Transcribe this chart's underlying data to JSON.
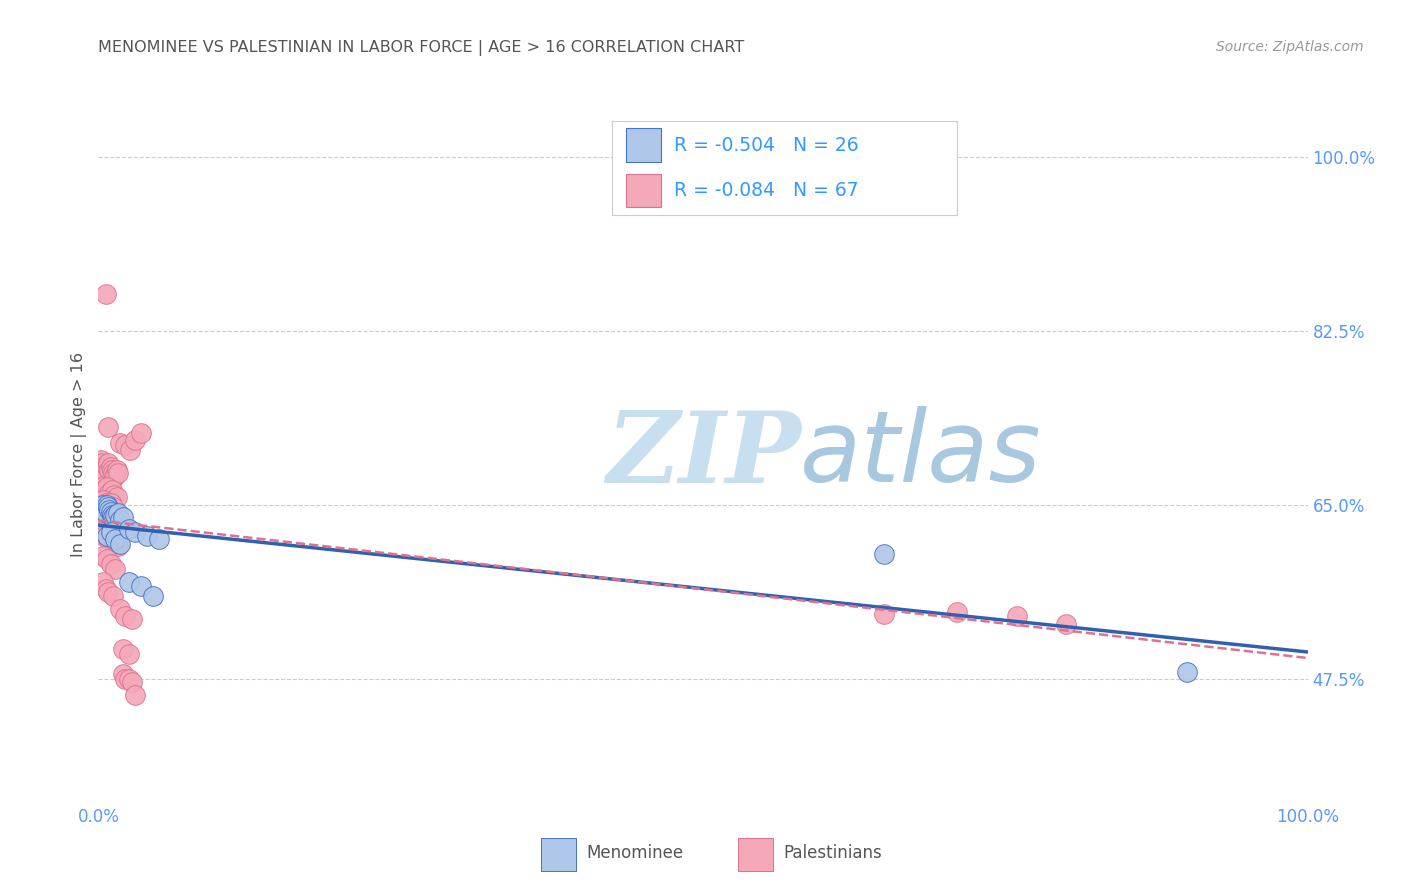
{
  "title": "MENOMINEE VS PALESTINIAN IN LABOR FORCE | AGE > 16 CORRELATION CHART",
  "source": "Source: ZipAtlas.com",
  "ylabel": "In Labor Force | Age > 16",
  "watermark_zip": "ZIP",
  "watermark_atlas": "atlas",
  "xlim": [
    0.0,
    1.0
  ],
  "ylim": [
    0.35,
    1.05
  ],
  "xtick_positions": [
    0.0,
    0.25,
    0.5,
    0.75,
    1.0
  ],
  "xtick_labels": [
    "0.0%",
    "",
    "",
    "",
    "100.0%"
  ],
  "ytick_positions": [
    0.475,
    0.65,
    0.825,
    1.0
  ],
  "ytick_labels": [
    "47.5%",
    "65.0%",
    "82.5%",
    "100.0%"
  ],
  "menominee_fill": "#aec6e8",
  "menominee_edge": "#4472c4",
  "palestinians_fill": "#f4a8b8",
  "palestinians_edge": "#e07090",
  "menominee_line_color": "#3060b0",
  "palestinians_line_color": "#e07090",
  "background_color": "#ffffff",
  "grid_color": "#cccccc",
  "title_color": "#555555",
  "source_color": "#999999",
  "axis_tick_color": "#5599ff",
  "ylabel_color": "#555555",
  "watermark_zip_color": "#c8dff0",
  "watermark_atlas_color": "#a8c8e0",
  "legend_text_color": "#3399ff",
  "legend_border_color": "#cccccc",
  "bottom_legend_color": "#555555",
  "menominee_x": [
    0.003,
    0.004,
    0.005,
    0.006,
    0.007,
    0.008,
    0.009,
    0.01,
    0.011,
    0.012,
    0.013,
    0.014,
    0.016,
    0.018,
    0.02,
    0.007,
    0.01,
    0.014,
    0.018,
    0.025,
    0.03,
    0.04,
    0.05,
    0.025,
    0.035,
    0.045,
    0.65,
    0.9
  ],
  "menominee_y": [
    0.648,
    0.65,
    0.645,
    0.642,
    0.65,
    0.648,
    0.645,
    0.643,
    0.64,
    0.638,
    0.635,
    0.64,
    0.642,
    0.635,
    0.638,
    0.618,
    0.622,
    0.615,
    0.61,
    0.625,
    0.622,
    0.618,
    0.615,
    0.572,
    0.568,
    0.558,
    0.6,
    0.482
  ],
  "palestinians_x": [
    0.002,
    0.003,
    0.004,
    0.005,
    0.006,
    0.007,
    0.008,
    0.009,
    0.01,
    0.011,
    0.012,
    0.013,
    0.014,
    0.015,
    0.016,
    0.003,
    0.005,
    0.007,
    0.009,
    0.011,
    0.013,
    0.015,
    0.004,
    0.006,
    0.008,
    0.01,
    0.012,
    0.005,
    0.007,
    0.009,
    0.011,
    0.013,
    0.015,
    0.003,
    0.005,
    0.008,
    0.01,
    0.013,
    0.016,
    0.004,
    0.007,
    0.01,
    0.014,
    0.004,
    0.006,
    0.008,
    0.012,
    0.006,
    0.008,
    0.018,
    0.022,
    0.026,
    0.03,
    0.035,
    0.018,
    0.022,
    0.028,
    0.02,
    0.025,
    0.02,
    0.022,
    0.025,
    0.028,
    0.03,
    0.65,
    0.71,
    0.76,
    0.8
  ],
  "palestinians_y": [
    0.695,
    0.692,
    0.688,
    0.685,
    0.682,
    0.688,
    0.692,
    0.685,
    0.688,
    0.685,
    0.682,
    0.678,
    0.68,
    0.685,
    0.682,
    0.668,
    0.665,
    0.668,
    0.662,
    0.665,
    0.66,
    0.658,
    0.655,
    0.652,
    0.648,
    0.652,
    0.648,
    0.638,
    0.635,
    0.638,
    0.632,
    0.635,
    0.63,
    0.622,
    0.618,
    0.615,
    0.618,
    0.612,
    0.608,
    0.598,
    0.595,
    0.59,
    0.585,
    0.572,
    0.565,
    0.562,
    0.558,
    0.862,
    0.728,
    0.712,
    0.71,
    0.705,
    0.715,
    0.722,
    0.545,
    0.538,
    0.535,
    0.505,
    0.5,
    0.48,
    0.475,
    0.475,
    0.472,
    0.458,
    0.54,
    0.542,
    0.538,
    0.53
  ]
}
